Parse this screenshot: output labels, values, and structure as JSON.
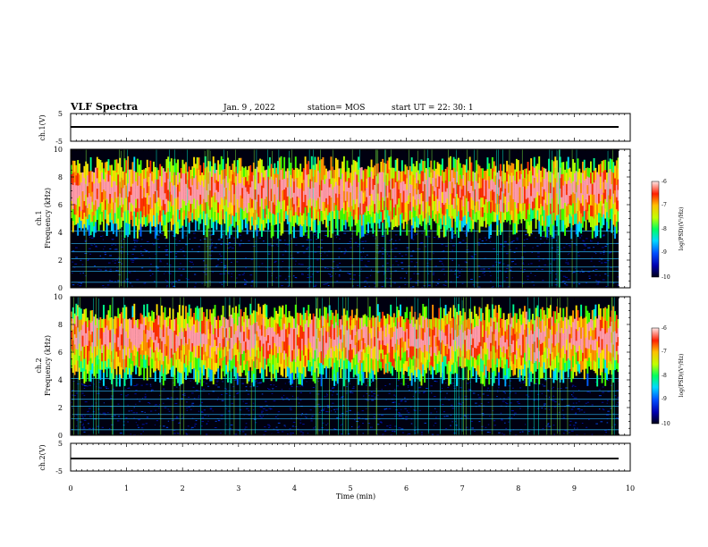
{
  "header": {
    "title": "VLF Spectra",
    "date": "Jan. 9 , 2022",
    "station": "station= MOS",
    "start_ut": "start  UT =   22: 30: 1"
  },
  "chart_data": [
    {
      "type": "line",
      "ylabel": "ch.1(V)",
      "ylim": [
        -5,
        5
      ],
      "yticks": [
        "5",
        "-5"
      ],
      "xlim": [
        0,
        10
      ],
      "level": 0
    },
    {
      "type": "heatmap",
      "ylabel_line1": "ch.1",
      "ylabel_line2": "Frequency (kHz)",
      "ylim": [
        0,
        10
      ],
      "yticks": [
        "0",
        "2",
        "4",
        "6",
        "8",
        "10"
      ],
      "band_khz": [
        4,
        9.5
      ],
      "colorbar": {
        "label": "log(PSD)(V²/Hz)",
        "range": [
          -10,
          -6
        ],
        "ticks": [
          "-6",
          "-7",
          "-8",
          "-9",
          "-10"
        ]
      }
    },
    {
      "type": "heatmap",
      "ylabel_line1": "ch.2",
      "ylabel_line2": "Frequency (kHz)",
      "ylim": [
        0,
        10
      ],
      "yticks": [
        "0",
        "2",
        "4",
        "6",
        "8",
        "10"
      ],
      "band_khz": [
        4,
        9.5
      ],
      "colorbar": {
        "label": "log(PSD)(V²/Hz)",
        "range": [
          -10,
          -6
        ],
        "ticks": [
          "-6",
          "-7",
          "-8",
          "-9",
          "-10"
        ]
      }
    },
    {
      "type": "line",
      "ylabel": "ch.2(V)",
      "ylim": [
        -5,
        5
      ],
      "yticks": [
        "5",
        "-5"
      ],
      "xlim": [
        0,
        10
      ],
      "level": 0
    }
  ],
  "xaxis": {
    "label": "Time (min)",
    "ticks": [
      "0",
      "1",
      "2",
      "3",
      "4",
      "5",
      "6",
      "7",
      "8",
      "9",
      "10"
    ],
    "xlim": [
      0,
      10
    ]
  },
  "colors": {
    "background": "#ffffff",
    "axis": "#000000",
    "spectrogram_floor": "#000010"
  }
}
